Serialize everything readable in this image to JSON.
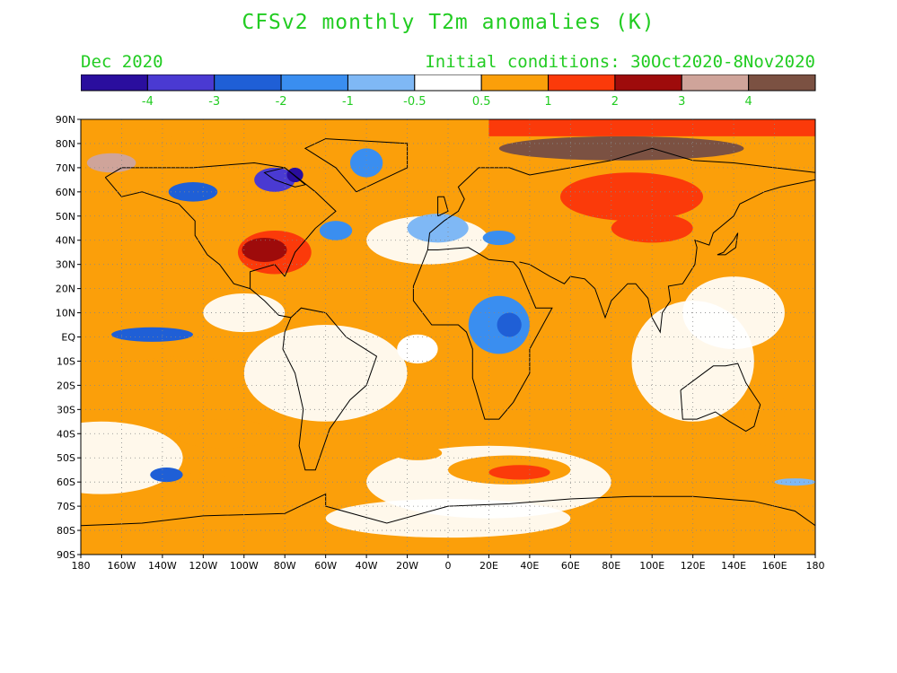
{
  "title": "CFSv2 monthly T2m anomalies (K)",
  "subtitle_left": "Dec 2020",
  "subtitle_right": "Initial conditions: 30Oct2020-8Nov2020",
  "text_color": "#22cc22",
  "legend": {
    "colors": [
      "#2a0e9e",
      "#4a3ad2",
      "#1f5fd6",
      "#3a8ef0",
      "#7fb8f5",
      "#ffffff",
      "#fb9f0a",
      "#fb3a0a",
      "#9e0b0b",
      "#cfa49a",
      "#7b5142"
    ],
    "labels": [
      "-4",
      "-3",
      "-2",
      "-1",
      "-0.5",
      "0.5",
      "1",
      "2",
      "3",
      "4"
    ]
  },
  "axes": {
    "lat_labels": [
      "90N",
      "80N",
      "70N",
      "60N",
      "50N",
      "40N",
      "30N",
      "20N",
      "10N",
      "EQ",
      "10S",
      "20S",
      "30S",
      "40S",
      "50S",
      "60S",
      "70S",
      "80S",
      "90S"
    ],
    "lon_labels": [
      "180",
      "160W",
      "140W",
      "120W",
      "100W",
      "80W",
      "60W",
      "40W",
      "20W",
      "0",
      "20E",
      "40E",
      "60E",
      "80E",
      "100E",
      "120E",
      "140E",
      "160E",
      "180"
    ]
  },
  "regions": [
    {
      "lon": -85,
      "lat": 35,
      "rx": 18,
      "ry": 9,
      "level": 7
    },
    {
      "lon": -90,
      "lat": 36,
      "rx": 11,
      "ry": 5,
      "level": 8
    },
    {
      "lon": -150,
      "lat": 35,
      "rx": 22,
      "ry": 7,
      "level": 6
    },
    {
      "lon": -130,
      "lat": -15,
      "rx": 30,
      "ry": 7,
      "level": 6
    },
    {
      "lon": -110,
      "lat": -40,
      "rx": 25,
      "ry": 6,
      "level": 6
    },
    {
      "lon": 30,
      "lat": -55,
      "rx": 30,
      "ry": 6,
      "level": 6
    },
    {
      "lon": 35,
      "lat": -56,
      "rx": 15,
      "ry": 3,
      "level": 7
    },
    {
      "lon": -120,
      "lat": -59,
      "rx": 12,
      "ry": 3,
      "level": 6
    },
    {
      "lon": -15,
      "lat": -48,
      "rx": 12,
      "ry": 3,
      "level": 6
    },
    {
      "lon": 90,
      "lat": 58,
      "rx": 35,
      "ry": 10,
      "level": 7
    },
    {
      "lon": 100,
      "lat": 45,
      "rx": 20,
      "ry": 6,
      "level": 7
    },
    {
      "lon": 85,
      "lat": 78,
      "rx": 60,
      "ry": 5,
      "level": 10
    },
    {
      "lon": -165,
      "lat": 72,
      "rx": 12,
      "ry": 4,
      "level": 9
    },
    {
      "lon": -160,
      "lat": 82,
      "rx": 25,
      "ry": 4,
      "level": 6
    },
    {
      "lon": 155,
      "lat": -30,
      "rx": 10,
      "ry": 15,
      "level": 6
    },
    {
      "lon": -15,
      "lat": -5,
      "rx": 10,
      "ry": 6,
      "level": 5
    },
    {
      "lon": -5,
      "lat": 45,
      "rx": 15,
      "ry": 6,
      "level": 4
    },
    {
      "lon": -85,
      "lat": 65,
      "rx": 10,
      "ry": 5,
      "level": 1
    },
    {
      "lon": -75,
      "lat": 67,
      "rx": 4,
      "ry": 3,
      "level": 0
    },
    {
      "lon": -125,
      "lat": 60,
      "rx": 12,
      "ry": 4,
      "level": 2
    },
    {
      "lon": -40,
      "lat": 72,
      "rx": 8,
      "ry": 6,
      "level": 3
    },
    {
      "lon": -55,
      "lat": 44,
      "rx": 8,
      "ry": 4,
      "level": 3
    },
    {
      "lon": -145,
      "lat": 1,
      "rx": 20,
      "ry": 3,
      "level": 2
    },
    {
      "lon": 25,
      "lat": 5,
      "rx": 15,
      "ry": 12,
      "level": 3
    },
    {
      "lon": 30,
      "lat": 5,
      "rx": 6,
      "ry": 5,
      "level": 2
    },
    {
      "lon": 25,
      "lat": 41,
      "rx": 8,
      "ry": 3,
      "level": 3
    },
    {
      "lon": -138,
      "lat": -57,
      "rx": 8,
      "ry": 3,
      "level": 2
    },
    {
      "lon": 170,
      "lat": -60,
      "rx": 10,
      "ry": 1.5,
      "level": 4
    }
  ]
}
